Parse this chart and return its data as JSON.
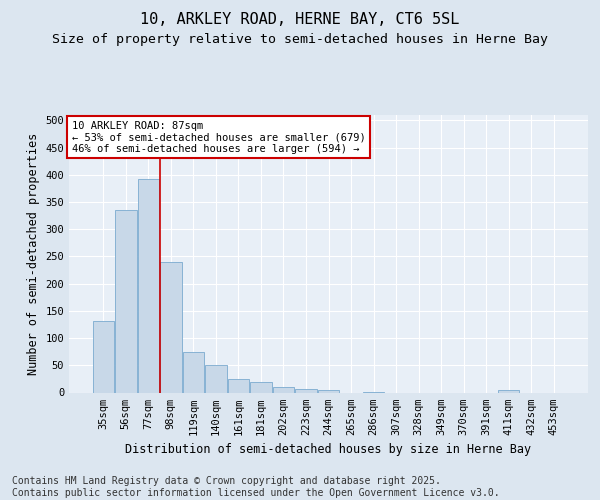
{
  "title1": "10, ARKLEY ROAD, HERNE BAY, CT6 5SL",
  "title2": "Size of property relative to semi-detached houses in Herne Bay",
  "xlabel": "Distribution of semi-detached houses by size in Herne Bay",
  "ylabel": "Number of semi-detached properties",
  "categories": [
    "35sqm",
    "56sqm",
    "77sqm",
    "98sqm",
    "119sqm",
    "140sqm",
    "161sqm",
    "181sqm",
    "202sqm",
    "223sqm",
    "244sqm",
    "265sqm",
    "286sqm",
    "307sqm",
    "328sqm",
    "349sqm",
    "370sqm",
    "391sqm",
    "411sqm",
    "432sqm",
    "453sqm"
  ],
  "values": [
    131,
    335,
    393,
    240,
    75,
    51,
    25,
    19,
    10,
    6,
    5,
    0,
    1,
    0,
    0,
    0,
    0,
    0,
    4,
    0,
    0
  ],
  "bar_color": "#c8d8e8",
  "bar_edge_color": "#7aaacf",
  "vline_x": 2.5,
  "vline_color": "#cc0000",
  "annotation_line1": "10 ARKLEY ROAD: 87sqm",
  "annotation_line2": "← 53% of semi-detached houses are smaller (679)",
  "annotation_line3": "46% of semi-detached houses are larger (594) →",
  "annotation_box_color": "#cc0000",
  "annotation_box_fill": "#ffffff",
  "ylim": [
    0,
    510
  ],
  "yticks": [
    0,
    50,
    100,
    150,
    200,
    250,
    300,
    350,
    400,
    450,
    500
  ],
  "footnote": "Contains HM Land Registry data © Crown copyright and database right 2025.\nContains public sector information licensed under the Open Government Licence v3.0.",
  "bg_color": "#dce6f0",
  "plot_bg_color": "#e8eff7",
  "grid_color": "#ffffff",
  "title_fontsize": 11,
  "subtitle_fontsize": 9.5,
  "axis_label_fontsize": 8.5,
  "tick_fontsize": 7.5,
  "footnote_fontsize": 7
}
